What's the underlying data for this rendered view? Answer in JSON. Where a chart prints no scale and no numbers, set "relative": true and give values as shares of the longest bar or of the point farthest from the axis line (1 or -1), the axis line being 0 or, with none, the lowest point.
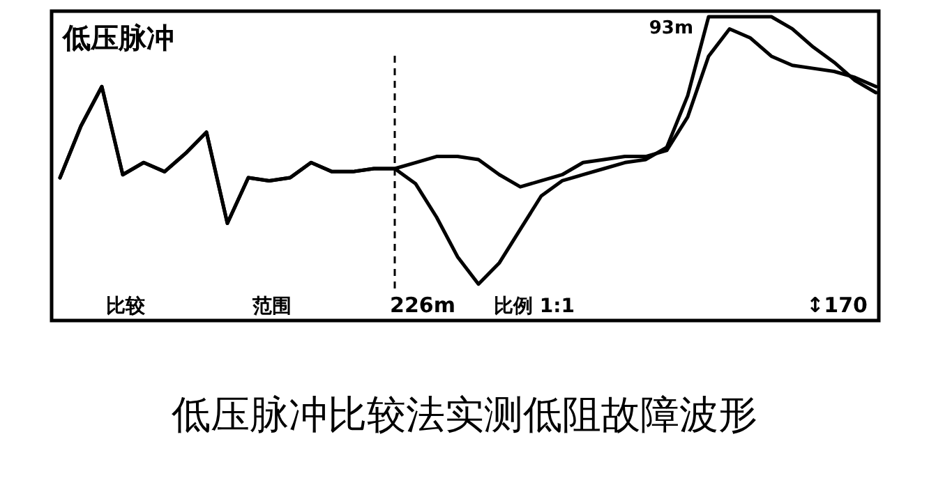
{
  "chart_data": {
    "type": "line",
    "relative": true,
    "title": "低压脉冲比较法实测低阻故障波形",
    "categories": [
      null,
      null,
      null,
      null,
      null,
      null,
      null,
      null,
      null,
      null,
      null,
      null,
      null,
      null,
      null,
      null,
      null,
      null,
      null,
      null,
      null,
      null,
      null,
      null,
      null,
      null,
      null,
      null,
      null,
      null,
      null,
      null,
      null,
      null,
      null,
      null,
      null,
      null,
      null,
      null
    ],
    "series": [
      {
        "color": "#000000",
        "values": [
          0.47,
          0.64,
          0.77,
          0.48,
          0.52,
          0.49,
          0.55,
          0.62,
          0.32,
          0.47,
          0.46,
          0.47,
          0.52,
          0.49,
          0.49,
          0.5,
          0.5,
          0.52,
          0.54,
          0.54,
          0.53,
          0.48,
          0.44,
          0.46,
          0.48,
          0.52,
          0.53,
          0.54,
          0.54,
          0.56,
          0.67,
          0.87,
          0.96,
          0.93,
          0.87,
          0.84,
          0.83,
          0.82,
          0.8,
          0.77
        ]
      },
      {
        "color": "#000000",
        "values": [
          0.47,
          0.64,
          0.77,
          0.48,
          0.52,
          0.49,
          0.55,
          0.62,
          0.32,
          0.47,
          0.46,
          0.47,
          0.52,
          0.49,
          0.49,
          0.5,
          0.5,
          0.45,
          0.34,
          0.21,
          0.12,
          0.19,
          0.3,
          0.41,
          0.46,
          0.48,
          0.5,
          0.52,
          0.53,
          0.57,
          0.74,
          1.0,
          1.0,
          1.0,
          1.0,
          0.96,
          0.9,
          0.85,
          0.79,
          0.75
        ]
      }
    ],
    "annotations": [
      "低压脉冲",
      "93m",
      "比较",
      "范围",
      "比例 1:1",
      "↕170",
      "226m"
    ]
  }
}
